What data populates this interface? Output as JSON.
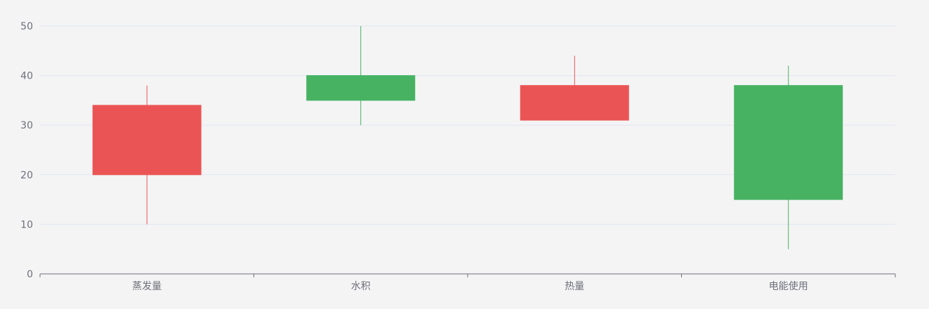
{
  "chart_data": {
    "type": "candlestick",
    "categories": [
      "蒸发量",
      "水积",
      "热量",
      "电能使用"
    ],
    "ohlc": [
      {
        "category": "蒸发量",
        "open": 20,
        "close": 34,
        "low": 10,
        "high": 38
      },
      {
        "category": "水积",
        "open": 40,
        "close": 35,
        "low": 30,
        "high": 50
      },
      {
        "category": "热量",
        "open": 31,
        "close": 38,
        "low": 31,
        "high": 44
      },
      {
        "category": "电能使用",
        "open": 38,
        "close": 15,
        "low": 5,
        "high": 42
      }
    ],
    "ylim": [
      0,
      50
    ],
    "yticks": [
      "0",
      "10",
      "20",
      "30",
      "40",
      "50"
    ],
    "grid": true,
    "colors": {
      "up": "#eb5454",
      "down": "#47b262",
      "grid": "#e0e6f1",
      "axis": "#6e7079",
      "background": "#f4f4f5"
    }
  }
}
